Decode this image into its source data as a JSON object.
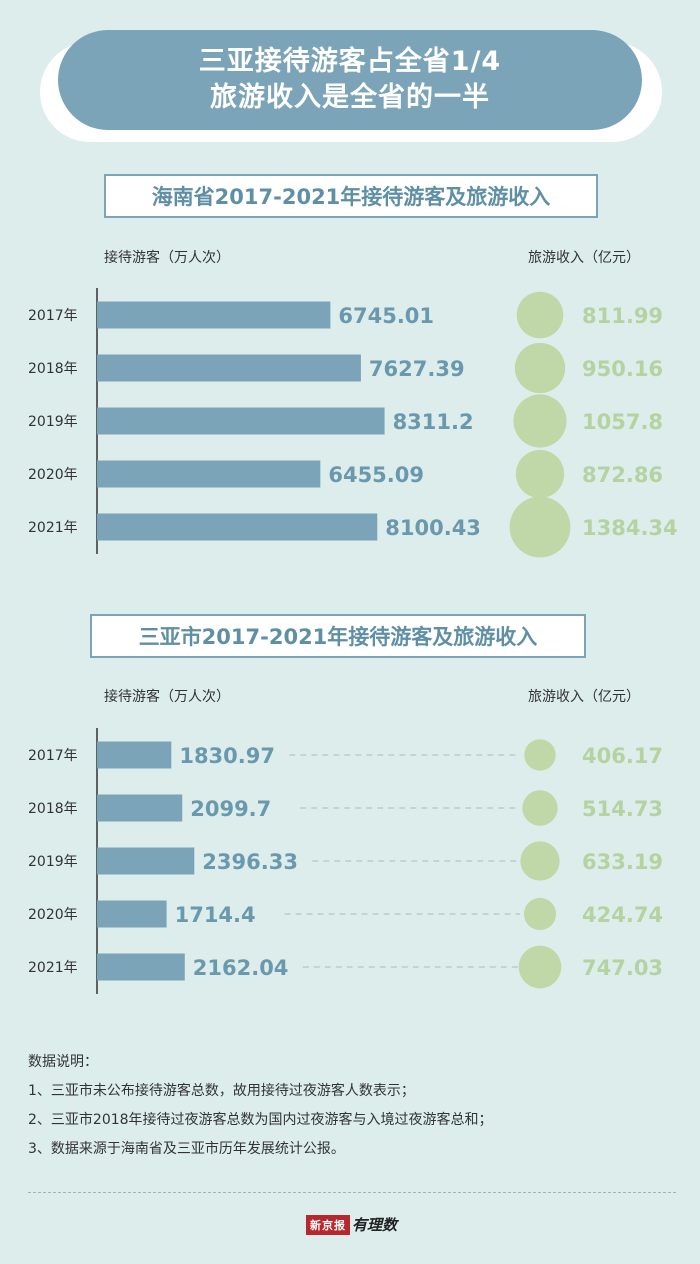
{
  "header": {
    "title_line1": "三亚接待游客占全省1/4",
    "title_line2": "旅游收入是全省的一半"
  },
  "colors": {
    "background": "#dcedec",
    "bar": "#7ba4b8",
    "bubble": "#c0d8a8",
    "bar_text": "#6a98ad",
    "bubble_text": "#b5d3a1"
  },
  "chart_data": [
    {
      "type": "bar",
      "title": "海南省2017-2021年接待游客及旅游收入",
      "xlabel": "",
      "ylabel": "",
      "left_label": "接待游客（万人次）",
      "right_label": "旅游收入（亿元）",
      "categories": [
        "2017年",
        "2018年",
        "2019年",
        "2020年",
        "2021年"
      ],
      "series": [
        {
          "name": "接待游客（万人次）",
          "values": [
            6745.01,
            7627.39,
            8311.2,
            6455.09,
            8100.43
          ],
          "labels": [
            "6745.01",
            "7627.39",
            "8311.2",
            "6455.09",
            "8100.43"
          ]
        },
        {
          "name": "旅游收入（亿元）",
          "values": [
            811.99,
            950.16,
            1057.8,
            872.86,
            1384.34
          ],
          "labels": [
            "811.99",
            "950.16",
            "1057.8",
            "872.86",
            "1384.34"
          ]
        }
      ],
      "dashed_guides": false
    },
    {
      "type": "bar",
      "title": "三亚市2017-2021年接待游客及旅游收入",
      "xlabel": "",
      "ylabel": "",
      "left_label": "接待游客（万人次）",
      "right_label": "旅游收入（亿元）",
      "categories": [
        "2017年",
        "2018年",
        "2019年",
        "2020年",
        "2021年"
      ],
      "series": [
        {
          "name": "接待游客（万人次）",
          "values": [
            1830.97,
            2099.7,
            2396.33,
            1714.4,
            2162.04
          ],
          "labels": [
            "1830.97",
            "2099.7",
            "2396.33",
            "1714.4",
            "2162.04"
          ]
        },
        {
          "name": "旅游收入（亿元）",
          "values": [
            406.17,
            514.73,
            633.19,
            424.74,
            747.03
          ],
          "labels": [
            "406.17",
            "514.73",
            "633.19",
            "424.74",
            "747.03"
          ]
        }
      ],
      "dashed_guides": true
    }
  ],
  "notes": {
    "heading": "数据说明：",
    "items": [
      "1、三亚市未公布接待游客总数，故用接待过夜游客人数表示；",
      "2、三亚市2018年接待过夜游客总数为国内过夜游客与入境过夜游客总和；",
      "3、数据来源于海南省及三亚市历年发展统计公报。"
    ]
  },
  "footer": {
    "logo_box": "新京报",
    "logo_text": "有理数"
  }
}
